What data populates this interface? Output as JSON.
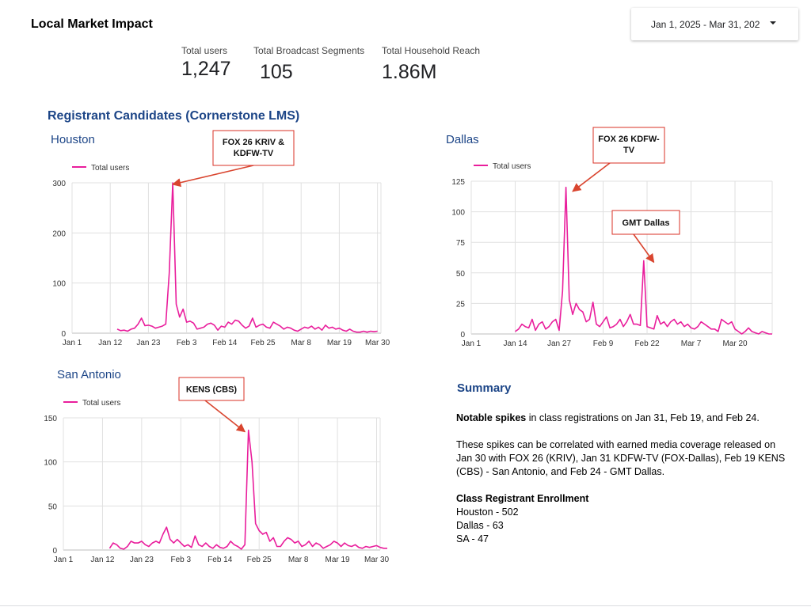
{
  "page": {
    "title": "Local Market Impact"
  },
  "date_range": {
    "label": "Jan 1, 2025 - Mar 31, 202"
  },
  "kpis": [
    {
      "label": "Total users",
      "value": "1,247"
    },
    {
      "label": "Total Broadcast Segments",
      "value": "105"
    },
    {
      "label": "Total Household Reach",
      "value": "1.86M"
    }
  ],
  "section_title": "Registrant Candidates (Cornerstone LMS)",
  "colors": {
    "series": "#e91e9c",
    "title": "#1c4587",
    "annotation_border": "#d93025",
    "arrow": "#d9452f",
    "grid": "#e0e0e0"
  },
  "chart_data": [
    {
      "type": "line",
      "city": "Houston",
      "legend": "Total users",
      "xlabels": [
        "Jan 1",
        "Jan 12",
        "Jan 23",
        "Feb 3",
        "Feb 14",
        "Feb 25",
        "Mar 8",
        "Mar 19",
        "Mar 30"
      ],
      "yticks": [
        0,
        100,
        200,
        300
      ],
      "ylim": [
        0,
        300
      ],
      "x_start_day": 0,
      "x_end_day": 89,
      "series": [
        {
          "name": "Total users",
          "start_day": 13,
          "values": [
            8,
            5,
            6,
            4,
            8,
            10,
            18,
            30,
            15,
            16,
            14,
            10,
            12,
            14,
            18,
            120,
            300,
            58,
            32,
            48,
            22,
            24,
            20,
            8,
            10,
            12,
            18,
            20,
            16,
            6,
            14,
            12,
            22,
            18,
            26,
            24,
            16,
            10,
            14,
            30,
            12,
            16,
            18,
            12,
            10,
            22,
            18,
            14,
            8,
            12,
            10,
            6,
            4,
            8,
            12,
            10,
            14,
            8,
            12,
            6,
            16,
            10,
            12,
            8,
            10,
            6,
            4,
            8,
            4,
            2,
            2,
            4,
            2,
            4,
            3,
            4
          ]
        }
      ],
      "annotation": {
        "text": "FOX 26 KRIV & KDFW-TV",
        "day": 29,
        "value": 300
      }
    },
    {
      "type": "line",
      "city": "Dallas",
      "legend": "Total users",
      "xlabels": [
        "Jan 1",
        "Jan 14",
        "Jan 27",
        "Feb 9",
        "Feb 22",
        "Mar 7",
        "Mar 20"
      ],
      "yticks": [
        0,
        25,
        50,
        75,
        100,
        125
      ],
      "ylim": [
        0,
        125
      ],
      "x_start_day": 0,
      "x_end_day": 89,
      "series": [
        {
          "name": "Total users",
          "start_day": 13,
          "values": [
            2,
            4,
            8,
            6,
            5,
            12,
            3,
            8,
            10,
            4,
            6,
            10,
            12,
            3,
            35,
            120,
            28,
            16,
            25,
            20,
            18,
            10,
            12,
            26,
            8,
            6,
            10,
            14,
            5,
            6,
            8,
            12,
            6,
            10,
            16,
            8,
            8,
            7,
            60,
            6,
            5,
            4,
            15,
            8,
            10,
            6,
            10,
            12,
            8,
            10,
            6,
            8,
            5,
            4,
            6,
            10,
            8,
            6,
            4,
            4,
            2,
            12,
            10,
            8,
            10,
            4,
            2,
            0,
            2,
            5,
            2,
            1,
            0,
            2,
            1,
            0,
            0
          ]
        }
      ],
      "annotations": [
        {
          "text": "FOX 26 KDFW-TV",
          "day": 30,
          "value": 118
        },
        {
          "text": "GMT Dallas",
          "day": 54,
          "value": 60
        }
      ]
    },
    {
      "type": "line",
      "city": "San Antonio",
      "legend": "Total users",
      "xlabels": [
        "Jan 1",
        "Jan 12",
        "Jan 23",
        "Feb 3",
        "Feb 14",
        "Feb 25",
        "Mar 8",
        "Mar 19",
        "Mar 30"
      ],
      "yticks": [
        0,
        50,
        100,
        150
      ],
      "ylim": [
        0,
        150
      ],
      "x_start_day": 0,
      "x_end_day": 89,
      "series": [
        {
          "name": "Total users",
          "start_day": 13,
          "values": [
            2,
            8,
            6,
            2,
            1,
            4,
            10,
            8,
            8,
            10,
            6,
            4,
            8,
            10,
            8,
            18,
            26,
            12,
            8,
            12,
            8,
            4,
            6,
            3,
            16,
            6,
            4,
            8,
            4,
            2,
            6,
            3,
            2,
            4,
            10,
            6,
            4,
            1,
            6,
            136,
            100,
            30,
            22,
            18,
            20,
            10,
            14,
            4,
            4,
            10,
            14,
            12,
            8,
            10,
            4,
            6,
            10,
            4,
            8,
            6,
            2,
            4,
            6,
            10,
            8,
            4,
            8,
            5,
            4,
            6,
            3,
            2,
            4,
            3,
            4,
            5,
            3,
            2,
            2
          ]
        }
      ],
      "annotation": {
        "text": "KENS (CBS)",
        "day": 51,
        "value": 136
      }
    }
  ],
  "summary": {
    "title": "Summary",
    "spikes_bold": "Notable spikes",
    "spikes_rest": " in class registrations on Jan 31, Feb 19, and Feb 24.",
    "paragraph2": "These spikes can be correlated with earned media coverage released on Jan 30 with FOX 26 (KRIV), Jan 31 KDFW-TV (FOX-Dallas), Feb 19 KENS (CBS) - San Antonio, and Feb 24 - GMT Dallas.",
    "enrollment_title": "Class Registrant Enrollment",
    "enrollment": [
      "Houston - 502",
      "Dallas - 63",
      "SA - 47"
    ]
  }
}
